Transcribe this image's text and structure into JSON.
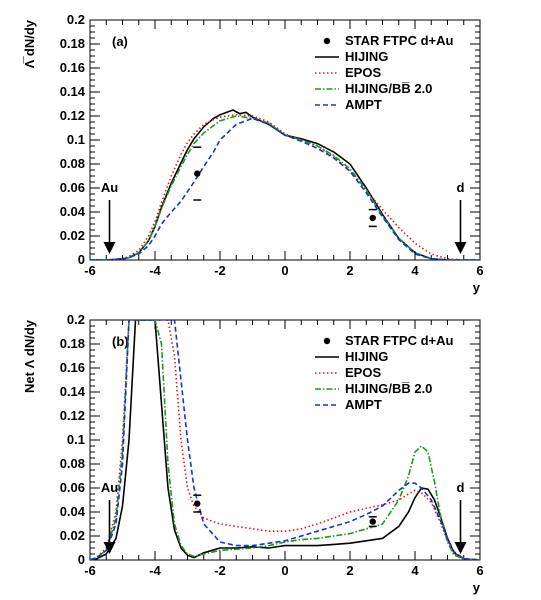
{
  "chart_data": [
    {
      "type": "line",
      "panel_label": "(a)",
      "xlabel": "y",
      "ylabel": "Λ̅ dN/dy",
      "xlim": [
        -6,
        6
      ],
      "ylim": [
        0,
        0.2
      ],
      "xticks": [
        "-6",
        "-4",
        "-2",
        "0",
        "2",
        "4",
        "6"
      ],
      "yticks": [
        "0",
        "0.02",
        "0.04",
        "0.06",
        "0.08",
        "0.1",
        "0.12",
        "0.14",
        "0.16",
        "0.18",
        "0.2"
      ],
      "annotations": [
        {
          "text": "Au",
          "x": -5.4,
          "arrow_from": 0.05,
          "arrow_to": 0.005
        },
        {
          "text": "d",
          "x": 5.4,
          "arrow_from": 0.05,
          "arrow_to": 0.005
        }
      ],
      "data_points": {
        "name": "STAR FTPC d+Au",
        "x": [
          -2.7,
          2.7
        ],
        "y": [
          0.072,
          0.035
        ],
        "sys_low": [
          0.05,
          0.028
        ],
        "sys_high": [
          0.094,
          0.042
        ]
      },
      "series": [
        {
          "name": "HIJING",
          "color": "#000000",
          "dash": "",
          "x": [
            -6,
            -5.5,
            -5,
            -4.8,
            -4.5,
            -4.2,
            -4,
            -3.8,
            -3.5,
            -3.2,
            -3,
            -2.8,
            -2.5,
            -2.2,
            -2,
            -1.8,
            -1.6,
            -1.4,
            -1.2,
            -1,
            -0.5,
            0,
            0.5,
            1,
            1.5,
            2,
            2.5,
            3,
            3.5,
            4,
            4.5,
            5,
            5.5,
            6
          ],
          "y": [
            0,
            0,
            0.001,
            0.002,
            0.006,
            0.016,
            0.028,
            0.044,
            0.064,
            0.081,
            0.092,
            0.101,
            0.111,
            0.118,
            0.121,
            0.123,
            0.125,
            0.122,
            0.123,
            0.119,
            0.113,
            0.104,
            0.101,
            0.097,
            0.09,
            0.08,
            0.06,
            0.038,
            0.018,
            0.006,
            0.001,
            0,
            0,
            0
          ]
        },
        {
          "name": "EPOS",
          "color": "#e8141c",
          "dash": "1.5,2.5",
          "x": [
            -6,
            -5.5,
            -5,
            -4.8,
            -4.5,
            -4.2,
            -4,
            -3.8,
            -3.5,
            -3.2,
            -3,
            -2.8,
            -2.5,
            -2.2,
            -2,
            -1.8,
            -1.5,
            -1,
            -0.5,
            0,
            0.5,
            1,
            1.5,
            2,
            2.5,
            3,
            3.5,
            4,
            4.5,
            5,
            5.5,
            6
          ],
          "y": [
            0,
            0,
            0.001,
            0.003,
            0.008,
            0.02,
            0.032,
            0.048,
            0.07,
            0.088,
            0.098,
            0.105,
            0.113,
            0.117,
            0.119,
            0.12,
            0.121,
            0.12,
            0.115,
            0.105,
            0.1,
            0.095,
            0.086,
            0.074,
            0.058,
            0.042,
            0.027,
            0.014,
            0.005,
            0.001,
            0,
            0
          ]
        },
        {
          "name": "HIJING/BB̅ 2.0",
          "color": "#1a9a1a",
          "dash": "6,2,1.5,2",
          "x": [
            -6,
            -5.5,
            -5,
            -4.8,
            -4.5,
            -4.2,
            -4,
            -3.8,
            -3.5,
            -3.2,
            -3,
            -2.8,
            -2.5,
            -2.2,
            -2,
            -1.5,
            -1,
            -0.5,
            0,
            0.5,
            1,
            1.5,
            2,
            2.5,
            3,
            3.5,
            4,
            4.5,
            5,
            5.5,
            6
          ],
          "y": [
            0,
            0,
            0.001,
            0.002,
            0.006,
            0.016,
            0.028,
            0.043,
            0.062,
            0.078,
            0.088,
            0.097,
            0.106,
            0.112,
            0.116,
            0.12,
            0.118,
            0.114,
            0.104,
            0.1,
            0.095,
            0.087,
            0.076,
            0.058,
            0.037,
            0.018,
            0.006,
            0.001,
            0,
            0,
            0
          ]
        },
        {
          "name": "AMPT",
          "color": "#1433d6",
          "dash": "5,3",
          "x": [
            -6,
            -5.5,
            -5,
            -4.8,
            -4.5,
            -4.2,
            -4,
            -3.8,
            -3.5,
            -3.2,
            -3,
            -2.8,
            -2.5,
            -2.2,
            -2,
            -1.5,
            -1,
            -0.5,
            0,
            0.5,
            1,
            1.5,
            2,
            2.5,
            3,
            3.5,
            4,
            4.5,
            5,
            5.5,
            6
          ],
          "y": [
            0,
            0,
            0.001,
            0.002,
            0.005,
            0.012,
            0.02,
            0.03,
            0.04,
            0.049,
            0.057,
            0.065,
            0.078,
            0.09,
            0.1,
            0.113,
            0.118,
            0.113,
            0.104,
            0.099,
            0.093,
            0.085,
            0.074,
            0.056,
            0.036,
            0.017,
            0.005,
            0.001,
            0,
            0,
            0
          ]
        }
      ]
    },
    {
      "type": "line",
      "panel_label": "(b)",
      "xlabel": "y",
      "ylabel": "Net Λ dN/dy",
      "xlim": [
        -6,
        6
      ],
      "ylim": [
        0,
        0.2
      ],
      "xticks": [
        "-6",
        "-4",
        "-2",
        "0",
        "2",
        "4",
        "6"
      ],
      "yticks": [
        "0",
        "0.02",
        "0.04",
        "0.06",
        "0.08",
        "0.1",
        "0.12",
        "0.14",
        "0.16",
        "0.18",
        "0.2"
      ],
      "annotations": [
        {
          "text": "Au",
          "x": -5.4,
          "arrow_from": 0.05,
          "arrow_to": 0.005
        },
        {
          "text": "d",
          "x": 5.4,
          "arrow_from": 0.05,
          "arrow_to": 0.005
        }
      ],
      "data_points": {
        "name": "STAR FTPC d+Au",
        "x": [
          -2.7,
          2.7
        ],
        "y": [
          0.047,
          0.032
        ],
        "sys_low": [
          0.04,
          0.028
        ],
        "sys_high": [
          0.054,
          0.036
        ]
      },
      "series": [
        {
          "name": "HIJING",
          "color": "#000000",
          "dash": "",
          "x": [
            -6,
            -5.8,
            -5.5,
            -5.2,
            -5,
            -4.8,
            -4.6,
            -4.4,
            -4.2,
            -4,
            -3.8,
            -3.6,
            -3.4,
            -3.2,
            -3,
            -2.8,
            -2.5,
            -2,
            -1.5,
            -1,
            -0.5,
            0,
            0.5,
            1,
            1.5,
            2,
            2.5,
            3,
            3.5,
            3.8,
            4,
            4.2,
            4.4,
            4.6,
            4.8,
            5,
            5.2,
            5.5,
            6
          ],
          "y": [
            0,
            0.001,
            0.005,
            0.018,
            0.045,
            0.1,
            0.2,
            0.2,
            0.2,
            0.2,
            0.13,
            0.06,
            0.025,
            0.01,
            0.004,
            0.002,
            0.006,
            0.01,
            0.01,
            0.011,
            0.01,
            0.012,
            0.012,
            0.012,
            0.013,
            0.014,
            0.016,
            0.018,
            0.028,
            0.04,
            0.052,
            0.06,
            0.059,
            0.05,
            0.035,
            0.018,
            0.006,
            0.001,
            0
          ]
        },
        {
          "name": "EPOS",
          "color": "#e8141c",
          "dash": "1.5,2.5",
          "x": [
            -6,
            -5.8,
            -5.5,
            -5.2,
            -5,
            -4.8,
            -4.6,
            -4.4,
            -4.2,
            -4,
            -3.8,
            -3.6,
            -3.4,
            -3.2,
            -3,
            -2.8,
            -2.5,
            -2,
            -1.5,
            -1,
            -0.5,
            0,
            0.5,
            1,
            1.5,
            2,
            2.5,
            3,
            3.5,
            3.8,
            4,
            4.2,
            4.5,
            4.8,
            5,
            5.2,
            5.5,
            6
          ],
          "y": [
            0,
            0.002,
            0.01,
            0.04,
            0.1,
            0.2,
            0.2,
            0.2,
            0.2,
            0.2,
            0.2,
            0.2,
            0.17,
            0.1,
            0.06,
            0.045,
            0.035,
            0.03,
            0.028,
            0.026,
            0.024,
            0.024,
            0.026,
            0.03,
            0.035,
            0.04,
            0.043,
            0.046,
            0.05,
            0.055,
            0.058,
            0.056,
            0.048,
            0.03,
            0.016,
            0.006,
            0.001,
            0
          ]
        },
        {
          "name": "HIJING/BB̅ 2.0",
          "color": "#1a9a1a",
          "dash": "6,2,1.5,2",
          "x": [
            -6,
            -5.8,
            -5.5,
            -5.2,
            -5,
            -4.8,
            -4.6,
            -4.4,
            -4.2,
            -4,
            -3.8,
            -3.6,
            -3.4,
            -3.2,
            -3,
            -2.8,
            -2.5,
            -2,
            -1.5,
            -1,
            -0.5,
            0,
            0.5,
            1,
            1.5,
            2,
            2.5,
            3,
            3.5,
            3.8,
            4,
            4.2,
            4.4,
            4.6,
            4.8,
            5,
            5.2,
            5.5,
            6
          ],
          "y": [
            0,
            0.002,
            0.008,
            0.035,
            0.09,
            0.2,
            0.2,
            0.2,
            0.2,
            0.2,
            0.18,
            0.08,
            0.03,
            0.012,
            0.005,
            0.003,
            0.005,
            0.008,
            0.009,
            0.01,
            0.012,
            0.015,
            0.017,
            0.018,
            0.02,
            0.022,
            0.026,
            0.03,
            0.05,
            0.07,
            0.09,
            0.095,
            0.09,
            0.065,
            0.035,
            0.015,
            0.004,
            0.001,
            0
          ]
        },
        {
          "name": "AMPT",
          "color": "#1433d6",
          "dash": "5,3",
          "x": [
            -6,
            -5.8,
            -5.5,
            -5.2,
            -5,
            -4.8,
            -4.6,
            -4.4,
            -4.2,
            -4,
            -3.8,
            -3.6,
            -3.4,
            -3.2,
            -3,
            -2.8,
            -2.5,
            -2,
            -1.5,
            -1,
            -0.5,
            0,
            0.5,
            1,
            1.5,
            2,
            2.5,
            3,
            3.5,
            3.8,
            4,
            4.2,
            4.5,
            4.8,
            5,
            5.2,
            5.5,
            6
          ],
          "y": [
            0,
            0.002,
            0.008,
            0.03,
            0.08,
            0.2,
            0.2,
            0.2,
            0.2,
            0.2,
            0.2,
            0.2,
            0.2,
            0.15,
            0.1,
            0.06,
            0.03,
            0.015,
            0.012,
            0.012,
            0.014,
            0.016,
            0.02,
            0.024,
            0.028,
            0.032,
            0.038,
            0.045,
            0.058,
            0.064,
            0.064,
            0.06,
            0.05,
            0.032,
            0.018,
            0.007,
            0.001,
            0
          ]
        }
      ]
    }
  ]
}
